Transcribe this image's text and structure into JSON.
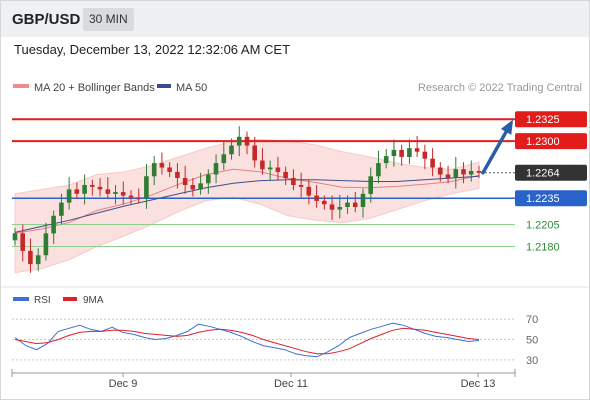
{
  "header": {
    "pair": "GBP/USD",
    "timeframe": "30 MIN"
  },
  "datetime": "Tuesday, December 13, 2022 12:32:06 AM CET",
  "legend": {
    "bollinger": "MA 20 + Bollinger Bands",
    "ma50": "MA 50"
  },
  "copyright": "Research © 2022 Trading Central",
  "colors": {
    "up": "#2e7d32",
    "down": "#c62828",
    "resistance": "#e21b1b",
    "support": "#2962c8",
    "target": "#2e8b3a",
    "ma50": "#3a4f8a",
    "bollinger": "#f4a6a6",
    "rsi": "#3f6fd8",
    "rsi_ma": "#e0202a",
    "price_tag": "#333333",
    "arrow": "#2a5da8"
  },
  "chart_data": [
    {
      "type": "candlestick",
      "title": "",
      "ylim": [
        1.2135,
        1.2348
      ],
      "x_ticks": [
        "Dec 9",
        "Dec 11",
        "Dec 13"
      ],
      "levels": [
        {
          "value": 1.2325,
          "label": "1.2325",
          "kind": "resistance"
        },
        {
          "value": 1.23,
          "label": "1.2300",
          "kind": "resistance"
        },
        {
          "value": 1.2264,
          "label": "1.2264",
          "kind": "last"
        },
        {
          "value": 1.2235,
          "label": "1.2235",
          "kind": "pivot"
        },
        {
          "value": 1.2205,
          "label": "1.2205",
          "kind": "target"
        },
        {
          "value": 1.218,
          "label": "1.2180",
          "kind": "target"
        }
      ],
      "forecast": {
        "from": 1.2264,
        "to": 1.2325,
        "direction": "up"
      },
      "close": [
        1.2195,
        1.2175,
        1.216,
        1.217,
        1.2195,
        1.2215,
        1.223,
        1.2245,
        1.224,
        1.225,
        1.2248,
        1.2245,
        1.224,
        1.2242,
        1.2238,
        1.2236,
        1.2235,
        1.226,
        1.2275,
        1.227,
        1.2265,
        1.2258,
        1.225,
        1.2245,
        1.2252,
        1.2262,
        1.2275,
        1.2285,
        1.2295,
        1.2305,
        1.2295,
        1.2278,
        1.2268,
        1.227,
        1.2265,
        1.2258,
        1.225,
        1.2248,
        1.2238,
        1.2232,
        1.2228,
        1.2222,
        1.2225,
        1.223,
        1.2225,
        1.224,
        1.226,
        1.2275,
        1.2283,
        1.229,
        1.2282,
        1.2292,
        1.2288,
        1.228,
        1.227,
        1.2262,
        1.2258,
        1.2268,
        1.2262,
        1.2266,
        1.2264
      ],
      "ma20_band_upper": [
        1.224,
        1.2245,
        1.225,
        1.2262,
        1.2265,
        1.2272,
        1.2282,
        1.2292,
        1.23,
        1.2302,
        1.23,
        1.2296,
        1.2288,
        1.2282,
        1.2275,
        1.227,
        1.2268,
        1.2276
      ],
      "ma20_band_lower": [
        1.215,
        1.2155,
        1.2165,
        1.218,
        1.2192,
        1.2205,
        1.222,
        1.2232,
        1.2236,
        1.2228,
        1.2215,
        1.221,
        1.2207,
        1.2212,
        1.2222,
        1.2232,
        1.224,
        1.2246
      ],
      "ma50": [
        1.2196,
        1.2203,
        1.221,
        1.2218,
        1.2226,
        1.2233,
        1.224,
        1.2247,
        1.2252,
        1.2255,
        1.2256,
        1.2256,
        1.2255,
        1.2254,
        1.2254,
        1.2256,
        1.2258,
        1.226
      ]
    },
    {
      "type": "line",
      "title": "",
      "legend": [
        "RSI",
        "9MA"
      ],
      "ylim": [
        22,
        78
      ],
      "y_ticks": [
        70,
        50,
        30
      ],
      "series": [
        {
          "name": "RSI",
          "values": [
            52,
            44,
            40,
            46,
            58,
            61,
            64,
            60,
            58,
            62,
            57,
            55,
            52,
            50,
            51,
            54,
            58,
            65,
            63,
            60,
            57,
            53,
            48,
            44,
            42,
            40,
            36,
            34,
            33,
            38,
            44,
            52,
            56,
            60,
            63,
            66,
            64,
            60,
            56,
            53,
            52,
            50,
            48,
            49
          ]
        },
        {
          "name": "9MA",
          "values": [
            50,
            48,
            46,
            47,
            50,
            54,
            57,
            58,
            58,
            59,
            59,
            58,
            56,
            55,
            54,
            53,
            54,
            57,
            59,
            60,
            59,
            57,
            54,
            50,
            47,
            44,
            41,
            38,
            36,
            36,
            38,
            41,
            46,
            51,
            55,
            59,
            61,
            60,
            59,
            57,
            55,
            53,
            51,
            50
          ]
        }
      ]
    }
  ]
}
